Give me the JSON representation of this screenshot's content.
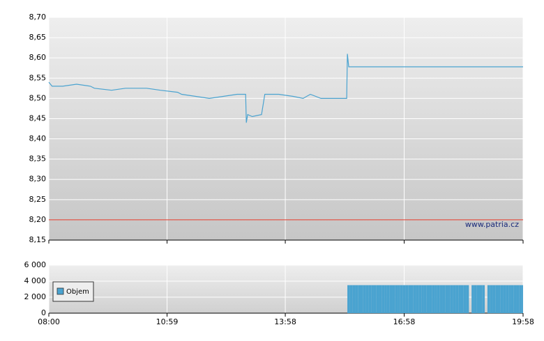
{
  "chart_data": [
    {
      "type": "line",
      "x": [
        "08:00",
        "08:05",
        "08:21",
        "08:42",
        "09:03",
        "09:09",
        "09:35",
        "09:56",
        "10:28",
        "10:49",
        "11:15",
        "11:21",
        "12:03",
        "12:24",
        "12:45",
        "12:58",
        "12:59",
        "13:01",
        "13:08",
        "13:22",
        "13:27",
        "13:48",
        "14:10",
        "14:25",
        "14:36",
        "14:52",
        "15:13",
        "15:31",
        "15:32",
        "15:34",
        "19:58"
      ],
      "values": [
        8.54,
        8.53,
        8.53,
        8.535,
        8.53,
        8.525,
        8.52,
        8.525,
        8.525,
        8.52,
        8.515,
        8.51,
        8.5,
        8.505,
        8.51,
        8.51,
        8.44,
        8.46,
        8.455,
        8.46,
        8.51,
        8.51,
        8.505,
        8.5,
        8.51,
        8.5,
        8.5,
        8.5,
        8.61,
        8.578,
        8.578
      ],
      "color": "#4aa3d0",
      "reference_line": 8.2,
      "reference_color": "#e03020",
      "annotation": "www.patria.cz",
      "xlim": [
        "08:00",
        "19:58"
      ],
      "ylim": [
        8.15,
        8.7
      ],
      "yticks": [
        {
          "value": 8.15,
          "label": "8,15"
        },
        {
          "value": 8.2,
          "label": "8,20"
        },
        {
          "value": 8.25,
          "label": "8,25"
        },
        {
          "value": 8.3,
          "label": "8,30"
        },
        {
          "value": 8.35,
          "label": "8,35"
        },
        {
          "value": 8.4,
          "label": "8,40"
        },
        {
          "value": 8.45,
          "label": "8,45"
        },
        {
          "value": 8.5,
          "label": "8,50"
        },
        {
          "value": 8.55,
          "label": "8,55"
        },
        {
          "value": 8.6,
          "label": "8,60"
        },
        {
          "value": 8.65,
          "label": "8,65"
        },
        {
          "value": 8.7,
          "label": "8,70"
        }
      ],
      "grid": true
    },
    {
      "type": "bar",
      "x": [
        "15:32",
        "15:36",
        "15:40",
        "15:44",
        "15:48",
        "15:52",
        "15:56",
        "16:00",
        "16:04",
        "16:08",
        "16:12",
        "16:16",
        "16:20",
        "16:24",
        "16:28",
        "16:32",
        "16:36",
        "16:40",
        "16:44",
        "16:48",
        "16:52",
        "16:56",
        "17:00",
        "17:04",
        "17:08",
        "17:12",
        "17:16",
        "17:20",
        "17:24",
        "17:28",
        "17:32",
        "17:36",
        "17:40",
        "17:44",
        "17:48",
        "17:52",
        "17:56",
        "18:00",
        "18:04",
        "18:08",
        "18:12",
        "18:16",
        "18:20",
        "18:24",
        "18:28",
        "18:32",
        "18:40",
        "18:44",
        "18:48",
        "18:52",
        "18:56",
        "19:04",
        "19:08",
        "19:12",
        "19:16",
        "19:20",
        "19:24",
        "19:28",
        "19:32",
        "19:36",
        "19:40",
        "19:44",
        "19:48",
        "19:52",
        "19:56"
      ],
      "series": [
        {
          "name": "Objem",
          "color": "#4aa3d0",
          "values": [
            3500,
            3500,
            3500,
            3500,
            3500,
            3500,
            3500,
            3500,
            3500,
            3500,
            3500,
            3500,
            3500,
            3500,
            3500,
            3500,
            3500,
            3500,
            3500,
            3500,
            3500,
            3500,
            3500,
            3500,
            3500,
            3500,
            3500,
            3500,
            3500,
            3500,
            3500,
            3500,
            3500,
            3500,
            3500,
            3500,
            3500,
            3500,
            3500,
            3500,
            3500,
            3500,
            3500,
            3500,
            3500,
            3500,
            3500,
            3500,
            3500,
            3500,
            3500,
            3500,
            3500,
            3500,
            3500,
            3500,
            3500,
            3500,
            3500,
            3500,
            3500,
            3500,
            3500,
            3500,
            3500
          ]
        }
      ],
      "legend": "upper left",
      "xlim": [
        "08:00",
        "19:58"
      ],
      "xticks": [
        "08:00",
        "10:59",
        "13:58",
        "16:58",
        "19:58"
      ],
      "ylim": [
        0,
        6000
      ],
      "yticks": [
        {
          "value": 0,
          "label": "0"
        },
        {
          "value": 2000,
          "label": "2 000"
        },
        {
          "value": 4000,
          "label": "4 000"
        },
        {
          "value": 6000,
          "label": "6 000"
        }
      ],
      "grid": true
    }
  ]
}
